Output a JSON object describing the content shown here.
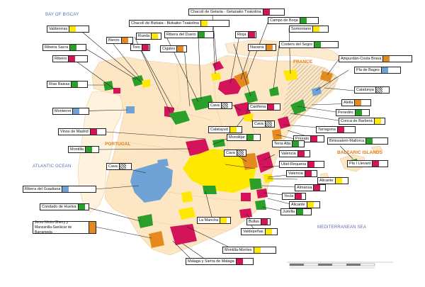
{
  "colors": {
    "land": "#fde6c3",
    "land_light": "#fff2dc",
    "france_hatch": "#f3b16c",
    "red": "#d4145a",
    "green": "#2aa02a",
    "yellow": "#ffe800",
    "orange": "#e58a1f",
    "blue": "#6fa3d6",
    "hatch": "#b9b9b9",
    "province": "#e9c89c"
  },
  "seas": {
    "biscay": "BAY OF BISCAY",
    "atlantic": "ATLANTIC OCEAN",
    "mediterranean": "MEDITERRANEAN SEA"
  },
  "regions": {
    "france": "FRANCE",
    "portugal": "PORTUGAL",
    "balearic": "BALEARIC ISLANDS"
  },
  "labels": [
    {
      "id": "chacoli-getaria",
      "text": "Chacolí de Getaria - Getariako Txakolina",
      "color": "red"
    },
    {
      "id": "valdeorras",
      "text": "Valdeorras",
      "color": "yellow"
    },
    {
      "id": "chacoli-bizkaia",
      "text": "Chacolí de Bizkaia - Bizkaiko Txakolina",
      "color": "yellow"
    },
    {
      "id": "campo-borja",
      "text": "Campo de Borja",
      "color": "green"
    },
    {
      "id": "bierzo",
      "text": "Bierzo",
      "color": "orange"
    },
    {
      "id": "rueda",
      "text": "Rueda",
      "color": "yellow"
    },
    {
      "id": "ribera-duero",
      "text": "Ribera del Duero",
      "color": "green"
    },
    {
      "id": "rioja",
      "text": "Rioja",
      "color": "red"
    },
    {
      "id": "somontano",
      "text": "Somontano",
      "color": "yellow"
    },
    {
      "id": "ribeira-sacra",
      "text": "Ribeira Sacra",
      "color": "green"
    },
    {
      "id": "toro",
      "text": "Toro",
      "color": "red"
    },
    {
      "id": "cigales",
      "text": "Cigales",
      "color": "orange"
    },
    {
      "id": "navarra",
      "text": "Navarra",
      "color": "orange"
    },
    {
      "id": "costers-segre",
      "text": "Costers del Segre",
      "color": "green"
    },
    {
      "id": "ribeiro",
      "text": "Ribeiro",
      "color": "red"
    },
    {
      "id": "ampurdan",
      "text": "Ampurdán-Costa Brava",
      "color": "orange"
    },
    {
      "id": "pla-bages",
      "text": "Pla de Bages",
      "color": "blue"
    },
    {
      "id": "rias-baixas",
      "text": "Rías Baixas",
      "color": "green"
    },
    {
      "id": "catalunya",
      "text": "Catalunya",
      "color": "hatch"
    },
    {
      "id": "alella",
      "text": "Alella",
      "color": "orange"
    },
    {
      "id": "cava-1",
      "text": "Cava",
      "color": "hatch"
    },
    {
      "id": "carinena",
      "text": "Cariñena",
      "color": "red"
    },
    {
      "id": "penedes",
      "text": "Penedès",
      "color": "green"
    },
    {
      "id": "monterrei",
      "text": "Monterrei",
      "color": "blue"
    },
    {
      "id": "conca-barbera",
      "text": "Conca de Barberá",
      "color": "yellow"
    },
    {
      "id": "cava-2",
      "text": "Cava",
      "color": "hatch"
    },
    {
      "id": "tarragona",
      "text": "Tarragona",
      "color": "red"
    },
    {
      "id": "calatayud",
      "text": "Calatayud",
      "color": "yellow"
    },
    {
      "id": "vinos-madrid",
      "text": "Vinos de Madrid",
      "color": "red"
    },
    {
      "id": "priorato",
      "text": "Priorato",
      "color": "red"
    },
    {
      "id": "binissalem",
      "text": "Binissalem-Mallorca",
      "color": "green"
    },
    {
      "id": "mondejar",
      "text": "Mondéjar",
      "color": "green"
    },
    {
      "id": "terra-alta",
      "text": "Terra Alta",
      "color": "green"
    },
    {
      "id": "montilla",
      "text": "Montilla",
      "color": "green"
    },
    {
      "id": "cava-3",
      "text": "Cava",
      "color": "hatch"
    },
    {
      "id": "valencia-1",
      "text": "Valencia",
      "color": "red"
    },
    {
      "id": "pla-llevant",
      "text": "Pla I Llevant",
      "color": "red"
    },
    {
      "id": "cava-4",
      "text": "Cava",
      "color": "hatch"
    },
    {
      "id": "utiel-requena",
      "text": "Utiel-Requena",
      "color": "red"
    },
    {
      "id": "valencia-2",
      "text": "Valencia",
      "color": "red"
    },
    {
      "id": "ribera-guadiana",
      "text": "Ribera del Guadiana",
      "color": "blue"
    },
    {
      "id": "alicante-1",
      "text": "Alicante",
      "color": "yellow"
    },
    {
      "id": "almansa",
      "text": "Almansa",
      "color": "red"
    },
    {
      "id": "yecla",
      "text": "Yecla",
      "color": "red"
    },
    {
      "id": "condado-huelva",
      "text": "Condado de Huelva",
      "color": "green"
    },
    {
      "id": "alicante-2",
      "text": "Alicante",
      "color": "yellow"
    },
    {
      "id": "jumilla",
      "text": "Jumilla",
      "color": "green"
    },
    {
      "id": "jerez",
      "text": "Jerez-Xérès-Sherry y Manzanilla-Sanlúcar de Barrameda",
      "color": "orange"
    },
    {
      "id": "la-mancha",
      "text": "La Mancha",
      "color": "yellow"
    },
    {
      "id": "bullas",
      "text": "Bullas",
      "color": "red"
    },
    {
      "id": "valdepenas",
      "text": "Valdepeñas",
      "color": "yellow"
    },
    {
      "id": "montilla-moriles",
      "text": "Montilla-Moriles",
      "color": "yellow"
    },
    {
      "id": "malaga",
      "text": "Málaga y Sierra de Málaga",
      "color": "red"
    }
  ]
}
